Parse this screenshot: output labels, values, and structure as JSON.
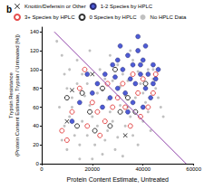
{
  "chart_data": {
    "type": "scatter",
    "title": "b",
    "x_label": "Protein Content Estimate, Untreated",
    "y_label": "Trypsin Resistance\n(Protein Content Estimate, Trypsin / Untreated [%])",
    "xlim": [
      0,
      60000
    ],
    "xticks": [
      0,
      20000,
      40000,
      60000
    ],
    "ylim": [
      0,
      145
    ],
    "yticks": [
      0,
      20,
      40,
      60,
      80,
      100,
      120,
      140
    ],
    "legend": "top",
    "grid": false,
    "series": [
      {
        "name": "Knottin/Defensin or Other",
        "color": "#000000",
        "marker": "x",
        "values": [
          [
            10000,
            45
          ],
          [
            12000,
            78
          ],
          [
            20000,
            95
          ],
          [
            33000,
            30
          ]
        ]
      },
      {
        "name": "1-2 Species by HPLC",
        "color": "#2233cc",
        "marker": "circle",
        "values": [
          [
            25000,
            95
          ],
          [
            28000,
            105
          ],
          [
            30000,
            110
          ],
          [
            32000,
            100
          ],
          [
            34000,
            115
          ],
          [
            36000,
            105
          ],
          [
            38000,
            120
          ],
          [
            40000,
            110
          ],
          [
            42000,
            95
          ],
          [
            44000,
            105
          ],
          [
            35000,
            90
          ],
          [
            37000,
            85
          ],
          [
            39000,
            95
          ],
          [
            41000,
            80
          ],
          [
            43000,
            70
          ],
          [
            30000,
            80
          ],
          [
            33000,
            75
          ],
          [
            27000,
            70
          ],
          [
            24000,
            60
          ],
          [
            36000,
            65
          ],
          [
            40000,
            60
          ],
          [
            45000,
            90
          ],
          [
            41000,
            125
          ],
          [
            38000,
            135
          ],
          [
            22000,
            85
          ],
          [
            20000,
            75
          ],
          [
            18000,
            95
          ],
          [
            15000,
            65
          ],
          [
            31000,
            125
          ],
          [
            46000,
            100
          ],
          [
            34000,
            55
          ],
          [
            29000,
            92
          ],
          [
            12000,
            45
          ],
          [
            44000,
            85
          ],
          [
            39000,
            105
          ]
        ]
      },
      {
        "name": "3+ Species by HPLC",
        "color": "#dd2222",
        "marker": "circle_open",
        "values": [
          [
            8000,
            35
          ],
          [
            12000,
            55
          ],
          [
            15000,
            80
          ],
          [
            18000,
            40
          ],
          [
            20000,
            65
          ],
          [
            22000,
            55
          ],
          [
            25000,
            45
          ],
          [
            28000,
            60
          ],
          [
            30000,
            70
          ],
          [
            32000,
            85
          ],
          [
            35000,
            40
          ],
          [
            38000,
            75
          ],
          [
            40000,
            90
          ],
          [
            42000,
            60
          ],
          [
            44000,
            75
          ],
          [
            17000,
            100
          ],
          [
            26000,
            85
          ],
          [
            33000,
            60
          ],
          [
            36000,
            95
          ],
          [
            10000,
            25
          ],
          [
            23000,
            30
          ],
          [
            45000,
            95
          ],
          [
            39000,
            50
          ]
        ]
      },
      {
        "name": "0 Species by HPLC",
        "color": "#000000",
        "marker": "circle_open",
        "values": [
          [
            10000,
            70
          ],
          [
            14000,
            40
          ],
          [
            19000,
            55
          ],
          [
            24000,
            80
          ],
          [
            27000,
            40
          ],
          [
            31000,
            55
          ],
          [
            34000,
            70
          ],
          [
            37000,
            55
          ],
          [
            29000,
            100
          ],
          [
            16000,
            75
          ],
          [
            41000,
            85
          ],
          [
            21000,
            35
          ]
        ]
      },
      {
        "name": "No HPLC Data",
        "color": "#b0b0b0",
        "marker": "dot",
        "values": [
          [
            6000,
            130
          ],
          [
            8000,
            115
          ],
          [
            9000,
            95
          ],
          [
            10000,
            80
          ],
          [
            12000,
            70
          ],
          [
            7000,
            60
          ],
          [
            11000,
            50
          ],
          [
            9000,
            40
          ],
          [
            13000,
            30
          ],
          [
            15000,
            20
          ],
          [
            10000,
            15
          ],
          [
            14000,
            110
          ],
          [
            16000,
            95
          ],
          [
            18000,
            85
          ],
          [
            17000,
            72
          ],
          [
            19000,
            62
          ],
          [
            20000,
            50
          ],
          [
            16000,
            45
          ],
          [
            22000,
            40
          ],
          [
            18000,
            30
          ],
          [
            21000,
            20
          ],
          [
            24000,
            10
          ],
          [
            20000,
            5
          ],
          [
            23000,
            100
          ],
          [
            25000,
            90
          ],
          [
            24000,
            78
          ],
          [
            26000,
            68
          ],
          [
            27000,
            55
          ],
          [
            28000,
            45
          ],
          [
            26000,
            35
          ],
          [
            30000,
            28
          ],
          [
            29000,
            15
          ],
          [
            32000,
            8
          ],
          [
            30000,
            105
          ],
          [
            32000,
            95
          ],
          [
            31000,
            82
          ],
          [
            33000,
            72
          ],
          [
            34000,
            60
          ],
          [
            35000,
            50
          ],
          [
            33000,
            40
          ],
          [
            36000,
            30
          ],
          [
            38000,
            20
          ],
          [
            36000,
            110
          ],
          [
            38000,
            98
          ],
          [
            39000,
            85
          ],
          [
            40000,
            75
          ],
          [
            41000,
            65
          ],
          [
            42000,
            55
          ],
          [
            40000,
            45
          ],
          [
            43000,
            35
          ],
          [
            44000,
            90
          ],
          [
            45000,
            80
          ],
          [
            46000,
            70
          ],
          [
            47000,
            60
          ],
          [
            44000,
            100
          ],
          [
            12000,
            60
          ],
          [
            14000,
            85
          ],
          [
            22000,
            75
          ],
          [
            28000,
            88
          ],
          [
            34000,
            88
          ],
          [
            37000,
            70
          ],
          [
            25000,
            25
          ],
          [
            15000,
            5
          ],
          [
            8000,
            25
          ],
          [
            11000,
            100
          ],
          [
            27000,
            115
          ],
          [
            42000,
            100
          ],
          [
            48000,
            50
          ],
          [
            19000,
            120
          ],
          [
            31000,
            62
          ],
          [
            35000,
            120
          ]
        ]
      },
      {
        "type": "line",
        "color": "#8e3fa8",
        "line_style": "solid",
        "values": [
          [
            5000,
            140
          ],
          [
            57000,
            0
          ]
        ]
      }
    ]
  }
}
